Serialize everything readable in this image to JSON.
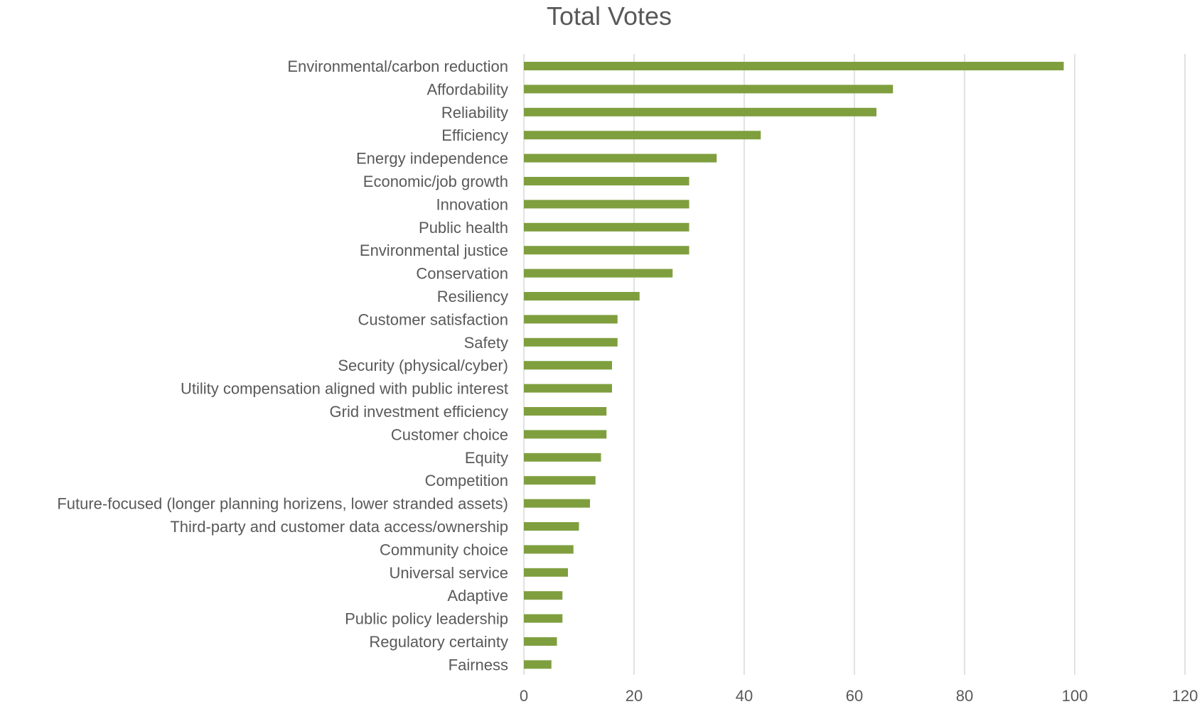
{
  "chart_data": {
    "type": "bar",
    "orientation": "horizontal",
    "title": "Total Votes",
    "xlabel": "",
    "ylabel": "",
    "xlim": [
      0,
      120
    ],
    "xticks": [
      0,
      20,
      40,
      60,
      80,
      100,
      120
    ],
    "grid": "vertical",
    "legend": "none",
    "bar_color": "#7f9f3f",
    "categories": [
      "Environmental/carbon reduction",
      "Affordability",
      "Reliability",
      "Efficiency",
      "Energy independence",
      "Economic/job growth",
      "Innovation",
      "Public health",
      "Environmental justice",
      "Conservation",
      "Resiliency",
      "Customer satisfaction",
      "Safety",
      "Security (physical/cyber)",
      "Utility compensation aligned with public interest",
      "Grid investment efficiency",
      "Customer choice",
      "Equity",
      "Competition",
      "Future-focused (longer planning horizens, lower stranded assets)",
      "Third-party and customer data access/ownership",
      "Community choice",
      "Universal service",
      "Adaptive",
      "Public policy leadership",
      "Regulatory certainty",
      "Fairness"
    ],
    "values": [
      98,
      67,
      64,
      43,
      35,
      30,
      30,
      30,
      30,
      27,
      21,
      17,
      17,
      16,
      16,
      15,
      15,
      14,
      13,
      12,
      10,
      9,
      8,
      7,
      7,
      6,
      5
    ]
  }
}
